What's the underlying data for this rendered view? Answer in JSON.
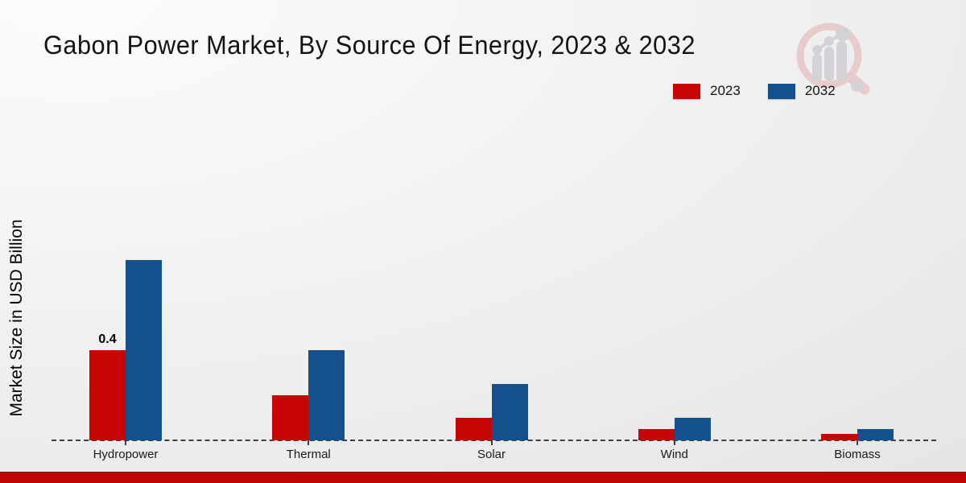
{
  "header": {
    "title": "Gabon Power Market, By Source Of Energy, 2023 & 2032"
  },
  "y_axis": {
    "label": "Market Size in USD Billion"
  },
  "footer": {
    "bar_color": "#c00505"
  },
  "logo": {
    "name": "market-research-magnifier-logo",
    "ring_color": "#e8cbcb",
    "glyph_color": "#d3d3d7"
  },
  "chart_data": {
    "type": "bar",
    "title": "Gabon Power Market, By Source Of Energy, 2023 & 2032",
    "xlabel": "",
    "ylabel": "Market Size in USD Billion",
    "categories": [
      "Hydropower",
      "Thermal",
      "Solar",
      "Wind",
      "Biomass"
    ],
    "series": [
      {
        "name": "2023",
        "color": "#c90404",
        "values": [
          0.4,
          0.2,
          0.1,
          0.05,
          0.03
        ]
      },
      {
        "name": "2032",
        "color": "#14508e",
        "values": [
          0.8,
          0.4,
          0.25,
          0.1,
          0.05
        ]
      }
    ],
    "annotations": [
      {
        "series": "2023",
        "category": "Hydropower",
        "text": "0.4"
      }
    ],
    "ylim": [
      0,
      1.0
    ],
    "y_axis_ticks_visible": false,
    "grid": false,
    "legend_position": "top-right",
    "baseline_style": "dashed"
  }
}
